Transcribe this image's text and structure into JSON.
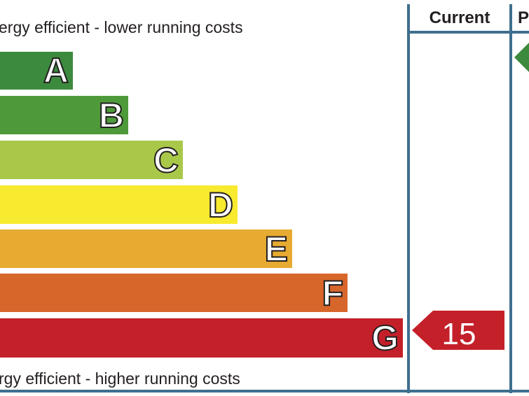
{
  "chart_data": {
    "type": "bar",
    "top_caption": "ergy efficient - lower running costs",
    "bottom_caption": "rgy efficient - higher running costs",
    "bands": [
      {
        "letter": "A",
        "color": "#3b8a3e"
      },
      {
        "letter": "B",
        "color": "#4e9a3a"
      },
      {
        "letter": "C",
        "color": "#a9c84a"
      },
      {
        "letter": "D",
        "color": "#f8ea2e"
      },
      {
        "letter": "E",
        "color": "#e7ab31"
      },
      {
        "letter": "F",
        "color": "#d7662b"
      },
      {
        "letter": "G",
        "color": "#c4202a"
      }
    ],
    "columns": {
      "current_label": "Current",
      "potential_label": "P"
    },
    "current_rating": {
      "value": "15",
      "band": "G",
      "color": "#c4202a"
    },
    "potential_rating": {
      "band": "A",
      "color": "#3b8a3e"
    }
  }
}
